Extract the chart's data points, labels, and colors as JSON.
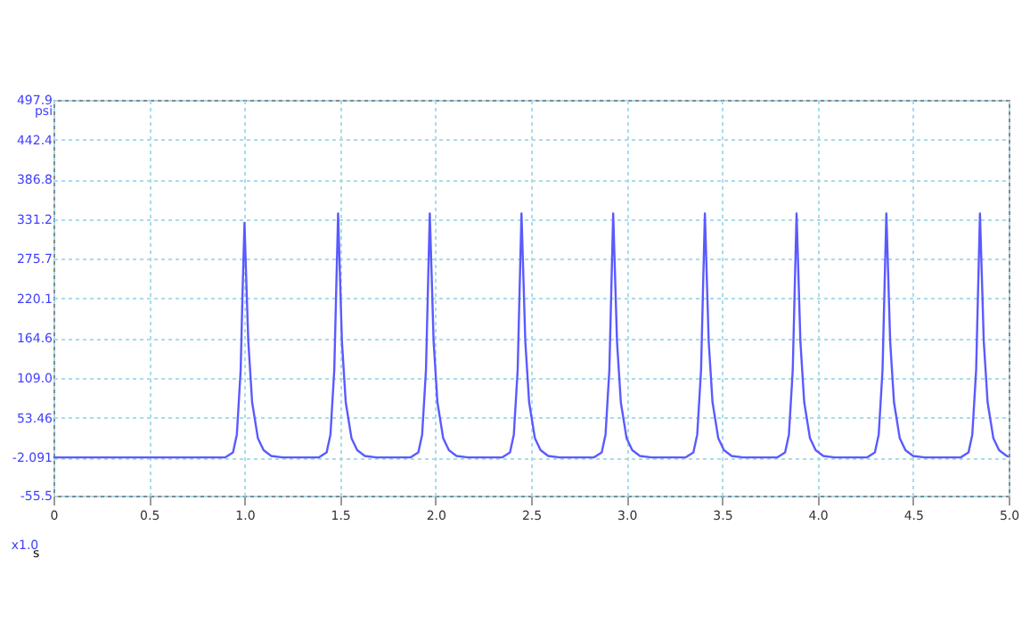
{
  "chart_data": {
    "type": "line",
    "xlabel": "s",
    "ylabel": "psi",
    "annotations": [
      "x1.0"
    ],
    "xlim": [
      0,
      5
    ],
    "xticks": [
      0,
      {
        "value": 0.5,
        "label": "0.5"
      },
      {
        "value": 1,
        "label": "1.0"
      },
      1.5,
      {
        "value": 2,
        "label": "2.0"
      },
      2.5,
      {
        "value": 3,
        "label": "3.0"
      },
      3.5,
      {
        "value": 4,
        "label": "4.0"
      },
      4.5,
      {
        "value": 5,
        "label": "5.0"
      }
    ],
    "ylim": [
      -55.5,
      497.9
    ],
    "yticks": [
      -55.5,
      -2.091,
      53.46,
      {
        "value": 109,
        "label": "109.0"
      },
      164.6,
      220.1,
      275.7,
      331.2,
      386.8,
      442.4,
      497.9
    ],
    "grid": true,
    "marker": "none",
    "line_style": "solid",
    "series": [
      {
        "color": "#5a5aff",
        "x": [
          0,
          0.9,
          0.94,
          0.96,
          0.98,
          0.99,
          1.0,
          1.01,
          1.02,
          1.04,
          1.07,
          1.1,
          1.14,
          1.2,
          1.39,
          1.43,
          1.45,
          1.47,
          1.48,
          1.49,
          1.5,
          1.51,
          1.53,
          1.56,
          1.59,
          1.63,
          1.69,
          1.87,
          1.91,
          1.93,
          1.95,
          1.96,
          1.97,
          1.98,
          1.99,
          2.01,
          2.04,
          2.07,
          2.11,
          2.17,
          2.35,
          2.39,
          2.41,
          2.43,
          2.44,
          2.45,
          2.46,
          2.47,
          2.49,
          2.52,
          2.55,
          2.59,
          2.65,
          2.83,
          2.87,
          2.89,
          2.91,
          2.92,
          2.93,
          2.94,
          2.95,
          2.97,
          3.0,
          3.03,
          3.07,
          3.13,
          3.31,
          3.35,
          3.37,
          3.39,
          3.4,
          3.41,
          3.42,
          3.43,
          3.45,
          3.48,
          3.51,
          3.55,
          3.61,
          3.79,
          3.83,
          3.85,
          3.87,
          3.88,
          3.89,
          3.9,
          3.91,
          3.93,
          3.96,
          3.99,
          4.03,
          4.09,
          4.26,
          4.3,
          4.32,
          4.34,
          4.35,
          4.36,
          4.37,
          4.38,
          4.4,
          4.43,
          4.46,
          4.5,
          4.56,
          4.75,
          4.79,
          4.81,
          4.83,
          4.84,
          4.85,
          4.86,
          4.87,
          4.89,
          4.92,
          4.95,
          4.99,
          5.0
        ],
        "values": [
          -2,
          -2,
          5,
          30,
          120,
          230,
          326,
          240,
          160,
          75,
          25,
          8,
          0,
          -2,
          -2,
          5,
          30,
          120,
          230,
          339,
          250,
          160,
          75,
          25,
          8,
          0,
          -2,
          -2,
          5,
          30,
          120,
          230,
          339,
          250,
          160,
          75,
          25,
          8,
          0,
          -2,
          -2,
          5,
          30,
          120,
          230,
          339,
          250,
          160,
          75,
          25,
          8,
          0,
          -2,
          -2,
          5,
          30,
          120,
          230,
          339,
          250,
          160,
          75,
          25,
          8,
          0,
          -2,
          -2,
          5,
          30,
          120,
          230,
          339,
          250,
          160,
          75,
          25,
          8,
          0,
          -2,
          -2,
          5,
          30,
          120,
          230,
          339,
          250,
          160,
          75,
          25,
          8,
          0,
          -2,
          -2,
          5,
          30,
          120,
          230,
          339,
          250,
          160,
          75,
          25,
          8,
          0,
          -2,
          -2,
          5,
          30,
          120,
          230,
          339,
          250,
          160,
          75,
          25,
          8,
          0,
          -1
        ]
      }
    ]
  }
}
